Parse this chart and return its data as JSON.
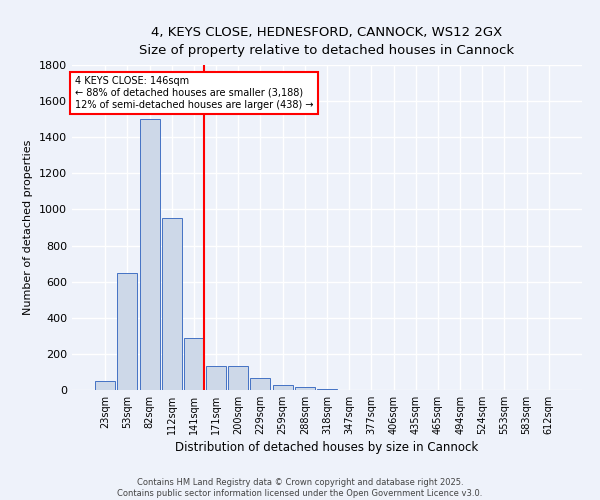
{
  "title_line1": "4, KEYS CLOSE, HEDNESFORD, CANNOCK, WS12 2GX",
  "title_line2": "Size of property relative to detached houses in Cannock",
  "xlabel": "Distribution of detached houses by size in Cannock",
  "ylabel": "Number of detached properties",
  "bin_labels": [
    "23sqm",
    "53sqm",
    "82sqm",
    "112sqm",
    "141sqm",
    "171sqm",
    "200sqm",
    "229sqm",
    "259sqm",
    "288sqm",
    "318sqm",
    "347sqm",
    "377sqm",
    "406sqm",
    "435sqm",
    "465sqm",
    "494sqm",
    "524sqm",
    "553sqm",
    "583sqm",
    "612sqm"
  ],
  "bar_heights": [
    50,
    650,
    1500,
    950,
    290,
    135,
    135,
    65,
    25,
    15,
    5,
    2,
    2,
    2,
    0,
    0,
    0,
    0,
    2,
    0,
    0
  ],
  "bar_color": "#cdd8e8",
  "bar_edge_color": "#4472c4",
  "red_line_index": 4,
  "ylim": [
    0,
    1800
  ],
  "yticks": [
    0,
    200,
    400,
    600,
    800,
    1000,
    1200,
    1400,
    1600,
    1800
  ],
  "annotation_text": "4 KEYS CLOSE: 146sqm\n← 88% of detached houses are smaller (3,188)\n12% of semi-detached houses are larger (438) →",
  "annotation_box_color": "white",
  "annotation_box_edgecolor": "red",
  "background_color": "#eef2fa",
  "grid_color": "white",
  "footer_line1": "Contains HM Land Registry data © Crown copyright and database right 2025.",
  "footer_line2": "Contains public sector information licensed under the Open Government Licence v3.0."
}
